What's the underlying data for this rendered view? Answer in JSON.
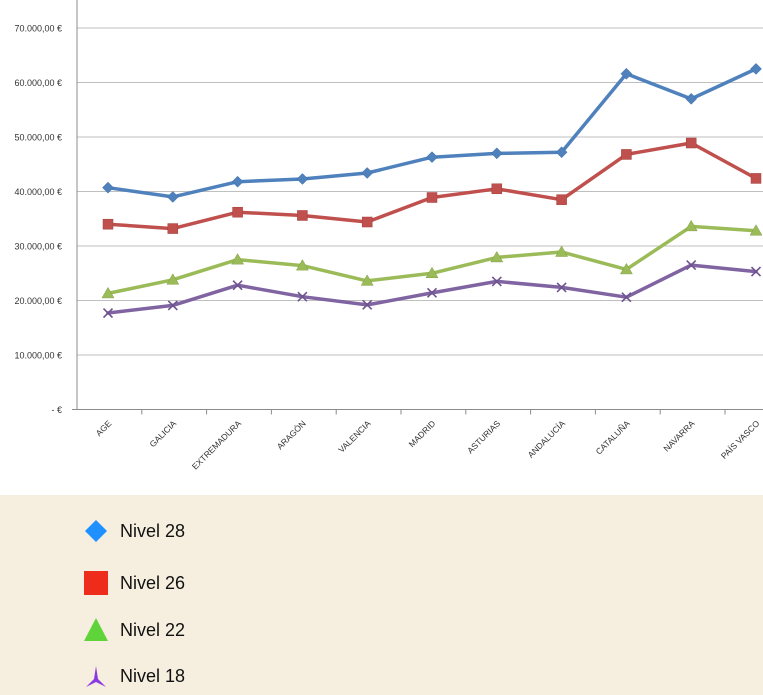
{
  "chart_data": {
    "type": "line",
    "categories": [
      "AGE",
      "GALICIA",
      "EXTREMADURA",
      "ARAGÓN",
      "VALENCIA",
      "MADRID",
      "ASTURIAS",
      "ANDALUCÍA",
      "CATALUÑA",
      "NAVARRA",
      "PAÍS VASCO"
    ],
    "y_ticks": [
      "-   €",
      "10.000,00 €",
      "20.000,00 €",
      "30.000,00 €",
      "40.000,00 €",
      "50.000,00 €",
      "60.000,00 €",
      "70.000,00 €"
    ],
    "ylim": [
      0,
      75000
    ],
    "grid": true,
    "series": [
      {
        "name": "Nivel 28",
        "marker": "diamond",
        "line_color": "#4f81bd",
        "legend_color": "#1e90ff",
        "values": [
          40700,
          39000,
          41800,
          42300,
          43400,
          46300,
          47000,
          47200,
          61600,
          57000,
          62500
        ]
      },
      {
        "name": "Nivel 26",
        "marker": "square",
        "line_color": "#c0504d",
        "legend_color": "#ee2c1c",
        "values": [
          34000,
          33200,
          36200,
          35600,
          34400,
          38900,
          40500,
          38500,
          46800,
          48900,
          42400
        ]
      },
      {
        "name": "Nivel 22",
        "marker": "triangle",
        "line_color": "#9bbb59",
        "legend_color": "#5fd33a",
        "values": [
          21300,
          23800,
          27500,
          26400,
          23600,
          25000,
          27900,
          28900,
          25700,
          33600,
          32800
        ]
      },
      {
        "name": "Nivel 18",
        "marker": "cross",
        "line_color": "#8064a2",
        "legend_color": "#8a3ae0",
        "values": [
          17700,
          19100,
          22800,
          20700,
          19200,
          21400,
          23500,
          22400,
          20600,
          26500,
          25300
        ]
      }
    ]
  },
  "legend": {
    "items": [
      {
        "label": "Nivel 28",
        "marker": "diamond-icon"
      },
      {
        "label": "Nivel 26",
        "marker": "square-icon"
      },
      {
        "label": "Nivel 22",
        "marker": "triangle-icon"
      },
      {
        "label": "Nivel 18",
        "marker": "tri-star-icon"
      }
    ]
  }
}
